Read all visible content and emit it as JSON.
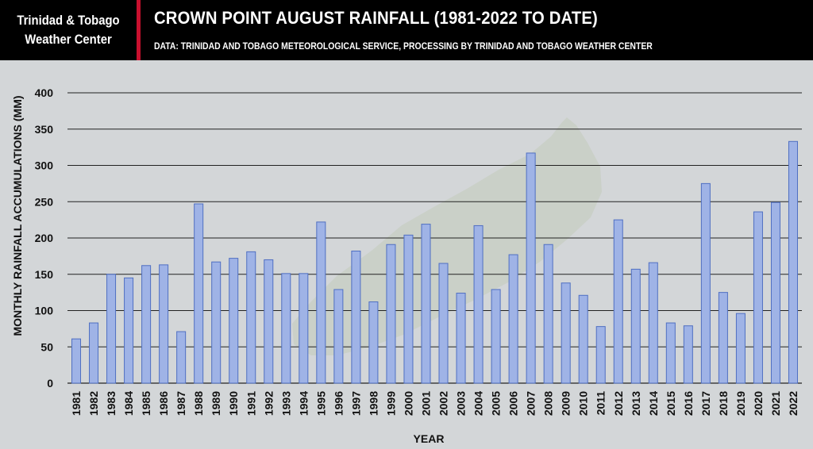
{
  "header": {
    "brand_line1": "Trinidad & Tobago",
    "brand_line2": "Weather Center",
    "title": "CROWN POINT AUGUST RAINFALL (1981-2022 TO DATE)",
    "subtitle": "DATA: TRINIDAD AND TOBAGO METEOROLOGICAL SERVICE, PROCESSING BY TRINIDAD AND TOBAGO WEATHER CENTER"
  },
  "colors": {
    "header_bg": "#000000",
    "accent_red": "#c8102e",
    "plot_bg": "#d3d6d8",
    "bar_fill": "#9fb3e6",
    "bar_stroke": "#4f6fc2",
    "grid": "#222222"
  },
  "chart_data": {
    "type": "bar",
    "title": "CROWN POINT AUGUST RAINFALL (1981-2022 TO DATE)",
    "xlabel": "YEAR",
    "ylabel": "MONTHLY RAINFALL ACCUMULATIONS (MM)",
    "ylim": [
      0,
      400
    ],
    "yticks": [
      0,
      50,
      100,
      150,
      200,
      250,
      300,
      350,
      400
    ],
    "grid": true,
    "legend": "none",
    "categories": [
      "1981",
      "1982",
      "1983",
      "1984",
      "1985",
      "1986",
      "1987",
      "1988",
      "1989",
      "1990",
      "1991",
      "1992",
      "1993",
      "1994",
      "1995",
      "1996",
      "1997",
      "1998",
      "1999",
      "2000",
      "2001",
      "2002",
      "2003",
      "2004",
      "2005",
      "2006",
      "2007",
      "2008",
      "2009",
      "2010",
      "2011",
      "2012",
      "2013",
      "2014",
      "2015",
      "2016",
      "2017",
      "2018",
      "2019",
      "2020",
      "2021",
      "2022"
    ],
    "values": [
      61,
      83,
      150,
      145,
      162,
      163,
      71,
      247,
      167,
      172,
      181,
      170,
      151,
      151,
      222,
      129,
      182,
      112,
      191,
      204,
      219,
      165,
      124,
      217,
      129,
      177,
      317,
      191,
      138,
      121,
      78,
      225,
      157,
      166,
      83,
      79,
      275,
      125,
      96,
      236,
      249,
      333
    ]
  }
}
